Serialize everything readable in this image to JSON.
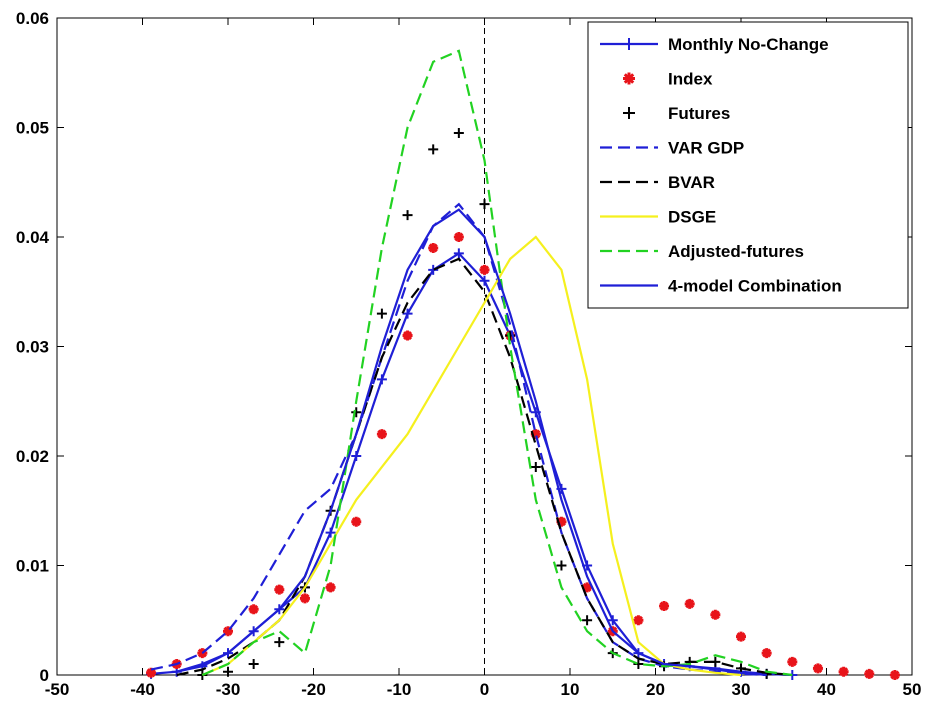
{
  "chart_data": {
    "type": "line",
    "x": [
      -39,
      -36,
      -33,
      -30,
      -27,
      -24,
      -21,
      -18,
      -15,
      -12,
      -9,
      -6,
      -3,
      0,
      3,
      6,
      9,
      12,
      15,
      18,
      21,
      24,
      27,
      30,
      33,
      36,
      39,
      42,
      45,
      48
    ],
    "series": [
      {
        "name": "Monthly No-Change",
        "color": "#1f1fd6",
        "dash": false,
        "marker": "plus",
        "values": [
          0.0001,
          0.0003,
          0.0008,
          0.002,
          0.004,
          0.006,
          0.008,
          0.013,
          0.02,
          0.027,
          0.033,
          0.037,
          0.0385,
          0.036,
          0.031,
          0.024,
          0.017,
          0.01,
          0.005,
          0.002,
          0.001,
          0.0008,
          0.0006,
          0.0003,
          0.0001,
          0,
          null,
          null,
          null,
          null
        ]
      },
      {
        "name": "Index",
        "color": "#e8141a",
        "dash": false,
        "marker": "star",
        "line": false,
        "values": [
          0.0002,
          0.001,
          0.002,
          0.004,
          0.006,
          0.0078,
          0.007,
          0.008,
          0.014,
          0.022,
          0.031,
          0.039,
          0.04,
          0.037,
          0.031,
          0.022,
          0.014,
          0.008,
          0.004,
          0.005,
          0.0063,
          0.0065,
          0.0055,
          0.0035,
          0.002,
          0.0012,
          0.0006,
          0.0003,
          0.0001,
          0
        ]
      },
      {
        "name": "Futures",
        "color": "#000000",
        "dash": false,
        "marker": "plus",
        "line": false,
        "values": [
          null,
          null,
          0,
          0.0003,
          0.001,
          0.003,
          0.008,
          0.015,
          0.024,
          0.033,
          0.042,
          0.048,
          0.0495,
          0.043,
          0.031,
          0.019,
          0.01,
          0.005,
          0.002,
          0.001,
          0.0008,
          0.0012,
          0.0012,
          0.0006,
          0.0001,
          null,
          null,
          null,
          null,
          null
        ]
      },
      {
        "name": "VAR GDP",
        "color": "#1f1fd6",
        "dash": true,
        "values": [
          0.0005,
          0.001,
          0.002,
          0.004,
          0.007,
          0.011,
          0.015,
          0.017,
          0.022,
          0.029,
          0.036,
          0.041,
          0.043,
          0.04,
          0.032,
          0.022,
          0.013,
          0.007,
          0.003,
          0.0015,
          0.0008,
          0.0005,
          0.0003,
          0.0001,
          0,
          null,
          null,
          null,
          null,
          null
        ]
      },
      {
        "name": "BVAR",
        "color": "#000000",
        "dash": true,
        "values": [
          null,
          0,
          0.0005,
          0.0015,
          0.003,
          0.005,
          0.009,
          0.015,
          0.022,
          0.029,
          0.034,
          0.037,
          0.038,
          0.035,
          0.029,
          0.021,
          0.013,
          0.007,
          0.003,
          0.0015,
          0.001,
          0.0012,
          0.0012,
          0.0006,
          0.0002,
          0,
          null,
          null,
          null,
          null
        ]
      },
      {
        "name": "DSGE",
        "color": "#f5f01e",
        "dash": false,
        "values": [
          null,
          null,
          0,
          0.001,
          0.003,
          0.005,
          0.008,
          0.012,
          0.016,
          0.019,
          0.022,
          0.026,
          0.03,
          0.034,
          0.038,
          0.04,
          0.037,
          0.027,
          0.012,
          0.003,
          0.001,
          0.0005,
          0.0002,
          0,
          null,
          null,
          null,
          null,
          null,
          null
        ]
      },
      {
        "name": "Adjusted-futures",
        "color": "#22d222",
        "dash": true,
        "values": [
          null,
          null,
          0,
          0.001,
          0.003,
          0.004,
          0.002,
          0.01,
          0.025,
          0.039,
          0.05,
          0.056,
          0.057,
          0.047,
          0.03,
          0.016,
          0.008,
          0.004,
          0.002,
          0.001,
          0.0008,
          0.001,
          0.0018,
          0.0012,
          0.0003,
          0,
          null,
          null,
          null,
          null
        ]
      },
      {
        "name": "4-model Combination",
        "color": "#1f1fd6",
        "dash": false,
        "values": [
          null,
          0.0003,
          0.001,
          0.002,
          0.004,
          0.006,
          0.009,
          0.015,
          0.022,
          0.03,
          0.037,
          0.041,
          0.0425,
          0.04,
          0.033,
          0.025,
          0.016,
          0.009,
          0.004,
          0.002,
          0.001,
          0.0008,
          0.0005,
          0.0002,
          0,
          null,
          null,
          null,
          null,
          null
        ]
      }
    ],
    "xlim": [
      -50,
      50
    ],
    "xticks": [
      -50,
      -40,
      -30,
      -20,
      -10,
      0,
      10,
      20,
      30,
      40,
      50
    ],
    "ylim": [
      0,
      0.06
    ],
    "yticks": [
      0,
      0.01,
      0.02,
      0.03,
      0.04,
      0.05,
      0.06
    ],
    "vline": 0,
    "legend": "northeast",
    "grid": false
  }
}
